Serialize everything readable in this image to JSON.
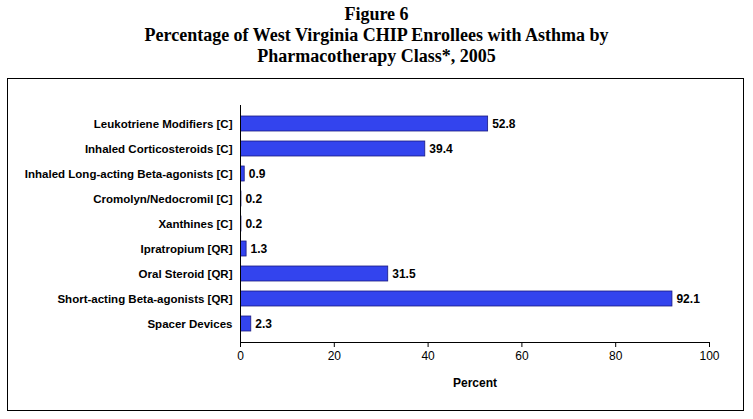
{
  "chart_data": {
    "type": "bar",
    "orientation": "horizontal",
    "title": "Figure 6",
    "subtitle": "Percentage of West Virginia CHIP Enrollees with Asthma by Pharmacotherapy Class*, 2005",
    "categories": [
      "Leukotriene Modifiers [C]",
      "Inhaled Corticosteroids [C]",
      "Inhaled Long-acting Beta-agonists [C]",
      "Cromolyn/Nedocromil [C]",
      "Xanthines [C]",
      "Ipratropium [QR]",
      "Oral Steroid [QR]",
      "Short-acting Beta-agonists [QR]",
      "Spacer Devices"
    ],
    "values": [
      52.8,
      39.4,
      0.9,
      0.2,
      0.2,
      1.3,
      31.5,
      92.1,
      2.3
    ],
    "color": "#3344ee",
    "xlim": [
      0,
      100
    ],
    "xticks": [
      0,
      20,
      40,
      60,
      80,
      100
    ],
    "xlabel": "Percent",
    "data_labels": true,
    "grid": false
  }
}
